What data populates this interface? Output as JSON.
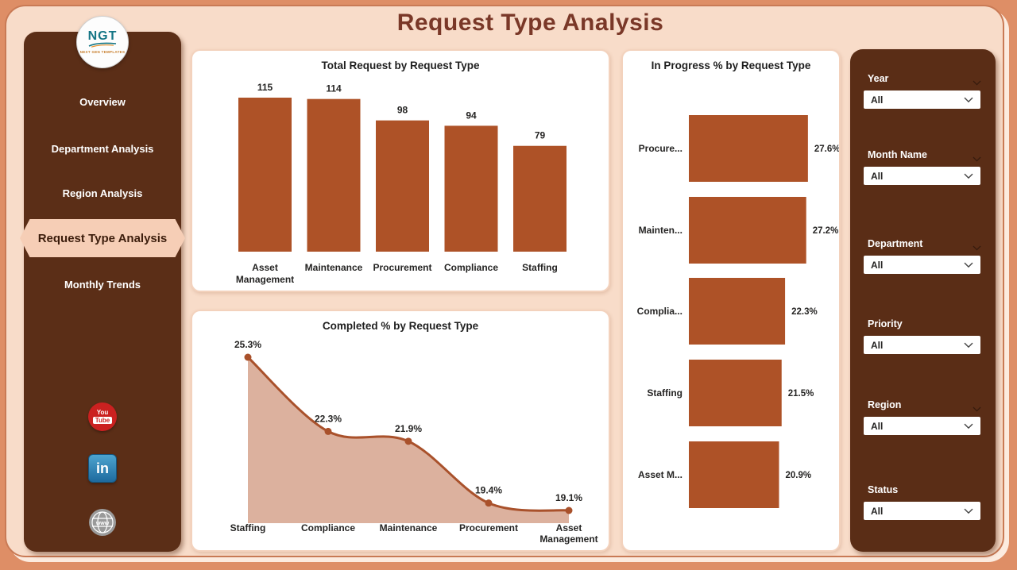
{
  "page": {
    "title": "Request Type Analysis"
  },
  "logo": {
    "text": "NGT",
    "subtext": "NEXT GEN TEMPLATES"
  },
  "sidebar": {
    "items": [
      {
        "label": "Overview",
        "selected": false
      },
      {
        "label": "Department Analysis",
        "selected": false
      },
      {
        "label": "Region Analysis",
        "selected": false
      },
      {
        "label": "Request Type Analysis",
        "selected": true
      },
      {
        "label": "Monthly Trends",
        "selected": false
      }
    ],
    "social_icons": [
      "youtube-icon",
      "linkedin-icon",
      "globe-www-icon"
    ]
  },
  "filters": [
    {
      "label": "Year",
      "value": "All",
      "header_chevron": true
    },
    {
      "label": "Month Name",
      "value": "All",
      "header_chevron": true
    },
    {
      "label": "Department",
      "value": "All",
      "header_chevron": true
    },
    {
      "label": "Priority",
      "value": "All",
      "header_chevron": false
    },
    {
      "label": "Region",
      "value": "All",
      "header_chevron": true
    },
    {
      "label": "Status",
      "value": "All",
      "header_chevron": false
    }
  ],
  "colors": {
    "bar": "#ae5227",
    "line": "#a9512b",
    "area_fill": "#d8a893",
    "label_text": "#252423",
    "accent_brown": "#5b2e17",
    "page_bg": "#f8dcc9"
  },
  "chart_data": [
    {
      "type": "bar",
      "title": "Total Request by Request Type",
      "categories": [
        "Asset Management",
        "Maintenance",
        "Procurement",
        "Compliance",
        "Staffing"
      ],
      "values": [
        115,
        114,
        98,
        94,
        79
      ],
      "data_labels": true,
      "xlabel": "",
      "ylabel": "",
      "ylim": [
        0,
        130
      ],
      "grid": false,
      "legend": "none"
    },
    {
      "type": "area",
      "title": "Completed % by Request Type",
      "categories": [
        "Staffing",
        "Compliance",
        "Maintenance",
        "Procurement",
        "Asset Management"
      ],
      "values": [
        25.3,
        22.3,
        21.9,
        19.4,
        19.1
      ],
      "unit": "%",
      "data_labels": true,
      "xlabel": "",
      "ylabel": "",
      "grid": false,
      "legend": "none"
    },
    {
      "type": "hbar",
      "title": "In Progress % by Request Type",
      "categories": [
        "Procure...",
        "Mainten...",
        "Complia...",
        "Staffing",
        "Asset M..."
      ],
      "values": [
        27.6,
        27.2,
        22.3,
        21.5,
        20.9
      ],
      "unit": "%",
      "data_labels": true,
      "xlabel": "",
      "ylabel": "",
      "grid": false,
      "legend": "none"
    }
  ]
}
